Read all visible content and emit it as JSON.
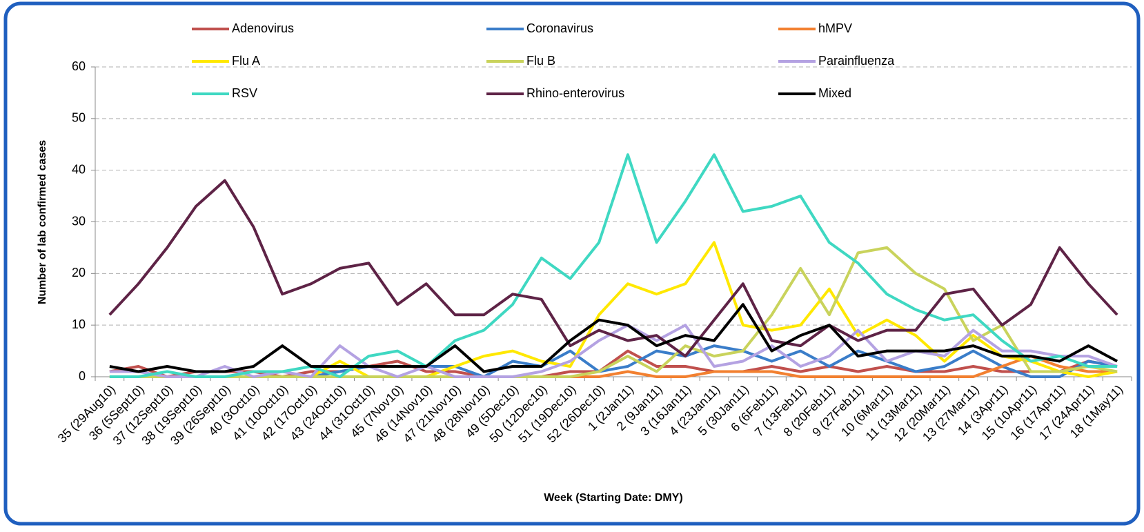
{
  "chart_data": {
    "type": "line",
    "y_label": "Number of lab confirmed cases",
    "x_label": "Week (Starting Date: DMY)",
    "categories": [
      "35 (29Aug10)",
      "36 (5Sept10)",
      "37 (12Sept10)",
      "38 (19Sept10)",
      "39 (26Sept10)",
      "40 (3Oct10)",
      "41 (10Oct10)",
      "42 (17Oct10)",
      "43 (24Oct10)",
      "44 (31Oct10)",
      "45 (7Nov10)",
      "46 (14Nov10)",
      "47 (21Nov10)",
      "48 (28Nov10)",
      "49 (5Dec10)",
      "50 (12Dec10)",
      "51 (19Dec10)",
      "52 (26Dec10)",
      "1 (2Jan11)",
      "2 (9Jan11)",
      "3 (16Jan11)",
      "4 (23Jan11)",
      "5 (30Jan11)",
      "6 (6Feb11)",
      "7 (13Feb11)",
      "8 (20Feb11)",
      "9 (27Feb11)",
      "10 (6Mar11)",
      "11 (13Mar11)",
      "12 (20Mar11)",
      "13 (27Mar11)",
      "14 (3Apr11)",
      "15 (10Apr11)",
      "16 (17Apr11)",
      "17 (24Apr11)",
      "18 (1May11)"
    ],
    "series": [
      {
        "name": "Adenovirus",
        "color": "#c0504d",
        "values": [
          1,
          2,
          0,
          1,
          1,
          1,
          0,
          1,
          1,
          2,
          3,
          1,
          1,
          0,
          0,
          0,
          1,
          1,
          5,
          2,
          2,
          1,
          1,
          2,
          1,
          2,
          1,
          2,
          1,
          1,
          2,
          1,
          1,
          1,
          3,
          2
        ]
      },
      {
        "name": "Coronavirus",
        "color": "#3a7dc9",
        "values": [
          0,
          0,
          0,
          0,
          0,
          0,
          0,
          0,
          1,
          2,
          2,
          2,
          2,
          0,
          3,
          2,
          5,
          1,
          2,
          5,
          4,
          6,
          5,
          3,
          5,
          2,
          5,
          3,
          1,
          2,
          5,
          2,
          0,
          0,
          3,
          2
        ]
      },
      {
        "name": "hMPV",
        "color": "#f28030",
        "values": [
          0,
          0,
          0,
          0,
          0,
          0,
          0,
          0,
          0,
          0,
          0,
          0,
          0,
          0,
          0,
          0,
          0,
          0,
          1,
          0,
          0,
          1,
          1,
          1,
          0,
          0,
          0,
          0,
          0,
          0,
          0,
          2,
          4,
          2,
          1,
          1
        ]
      },
      {
        "name": "Flu A",
        "color": "#ffe800",
        "values": [
          0,
          0,
          0,
          0,
          0,
          0,
          0,
          0,
          3,
          0,
          0,
          0,
          2,
          4,
          5,
          3,
          2,
          12,
          18,
          16,
          18,
          26,
          10,
          9,
          10,
          17,
          8,
          11,
          8,
          3,
          8,
          4,
          3,
          1,
          0,
          1
        ]
      },
      {
        "name": "Flu B",
        "color": "#c9d35c",
        "values": [
          0,
          0,
          0,
          0,
          0,
          0,
          0,
          0,
          0,
          0,
          0,
          0,
          0,
          0,
          0,
          0,
          0,
          1,
          4,
          1,
          6,
          4,
          5,
          12,
          21,
          12,
          24,
          25,
          20,
          17,
          7,
          10,
          1,
          1,
          2,
          1
        ]
      },
      {
        "name": "Parainfluenza",
        "color": "#b4a2e2",
        "values": [
          1,
          1,
          0,
          0,
          2,
          0,
          1,
          0,
          6,
          2,
          0,
          2,
          0,
          0,
          0,
          1,
          3,
          7,
          10,
          7,
          10,
          2,
          3,
          6,
          2,
          4,
          9,
          3,
          5,
          4,
          9,
          5,
          5,
          4,
          4,
          2
        ]
      },
      {
        "name": "RSV",
        "color": "#3fd8c2",
        "values": [
          0,
          0,
          1,
          0,
          0,
          1,
          1,
          2,
          0,
          4,
          5,
          2,
          7,
          9,
          14,
          23,
          19,
          26,
          43,
          26,
          34,
          43,
          32,
          33,
          35,
          26,
          22,
          16,
          13,
          11,
          12,
          7,
          3,
          4,
          2,
          2
        ]
      },
      {
        "name": "Rhino-enterovirus",
        "color": "#5e2346",
        "values": [
          12,
          18,
          25,
          33,
          38,
          29,
          16,
          18,
          21,
          22,
          14,
          18,
          12,
          12,
          16,
          15,
          6,
          9,
          7,
          8,
          4,
          11,
          18,
          7,
          6,
          10,
          7,
          9,
          9,
          16,
          17,
          10,
          14,
          25,
          18,
          12
        ]
      },
      {
        "name": "Mixed",
        "color": "#000000",
        "values": [
          2,
          1,
          2,
          1,
          1,
          2,
          6,
          2,
          2,
          2,
          2,
          2,
          6,
          1,
          2,
          2,
          7,
          11,
          10,
          6,
          8,
          7,
          14,
          5,
          8,
          10,
          4,
          5,
          5,
          5,
          6,
          4,
          4,
          3,
          6,
          3
        ]
      }
    ],
    "ylim": [
      0,
      60
    ],
    "yticks": [
      0,
      10,
      20,
      30,
      40,
      50,
      60
    ],
    "grid": true,
    "legend": "top"
  }
}
